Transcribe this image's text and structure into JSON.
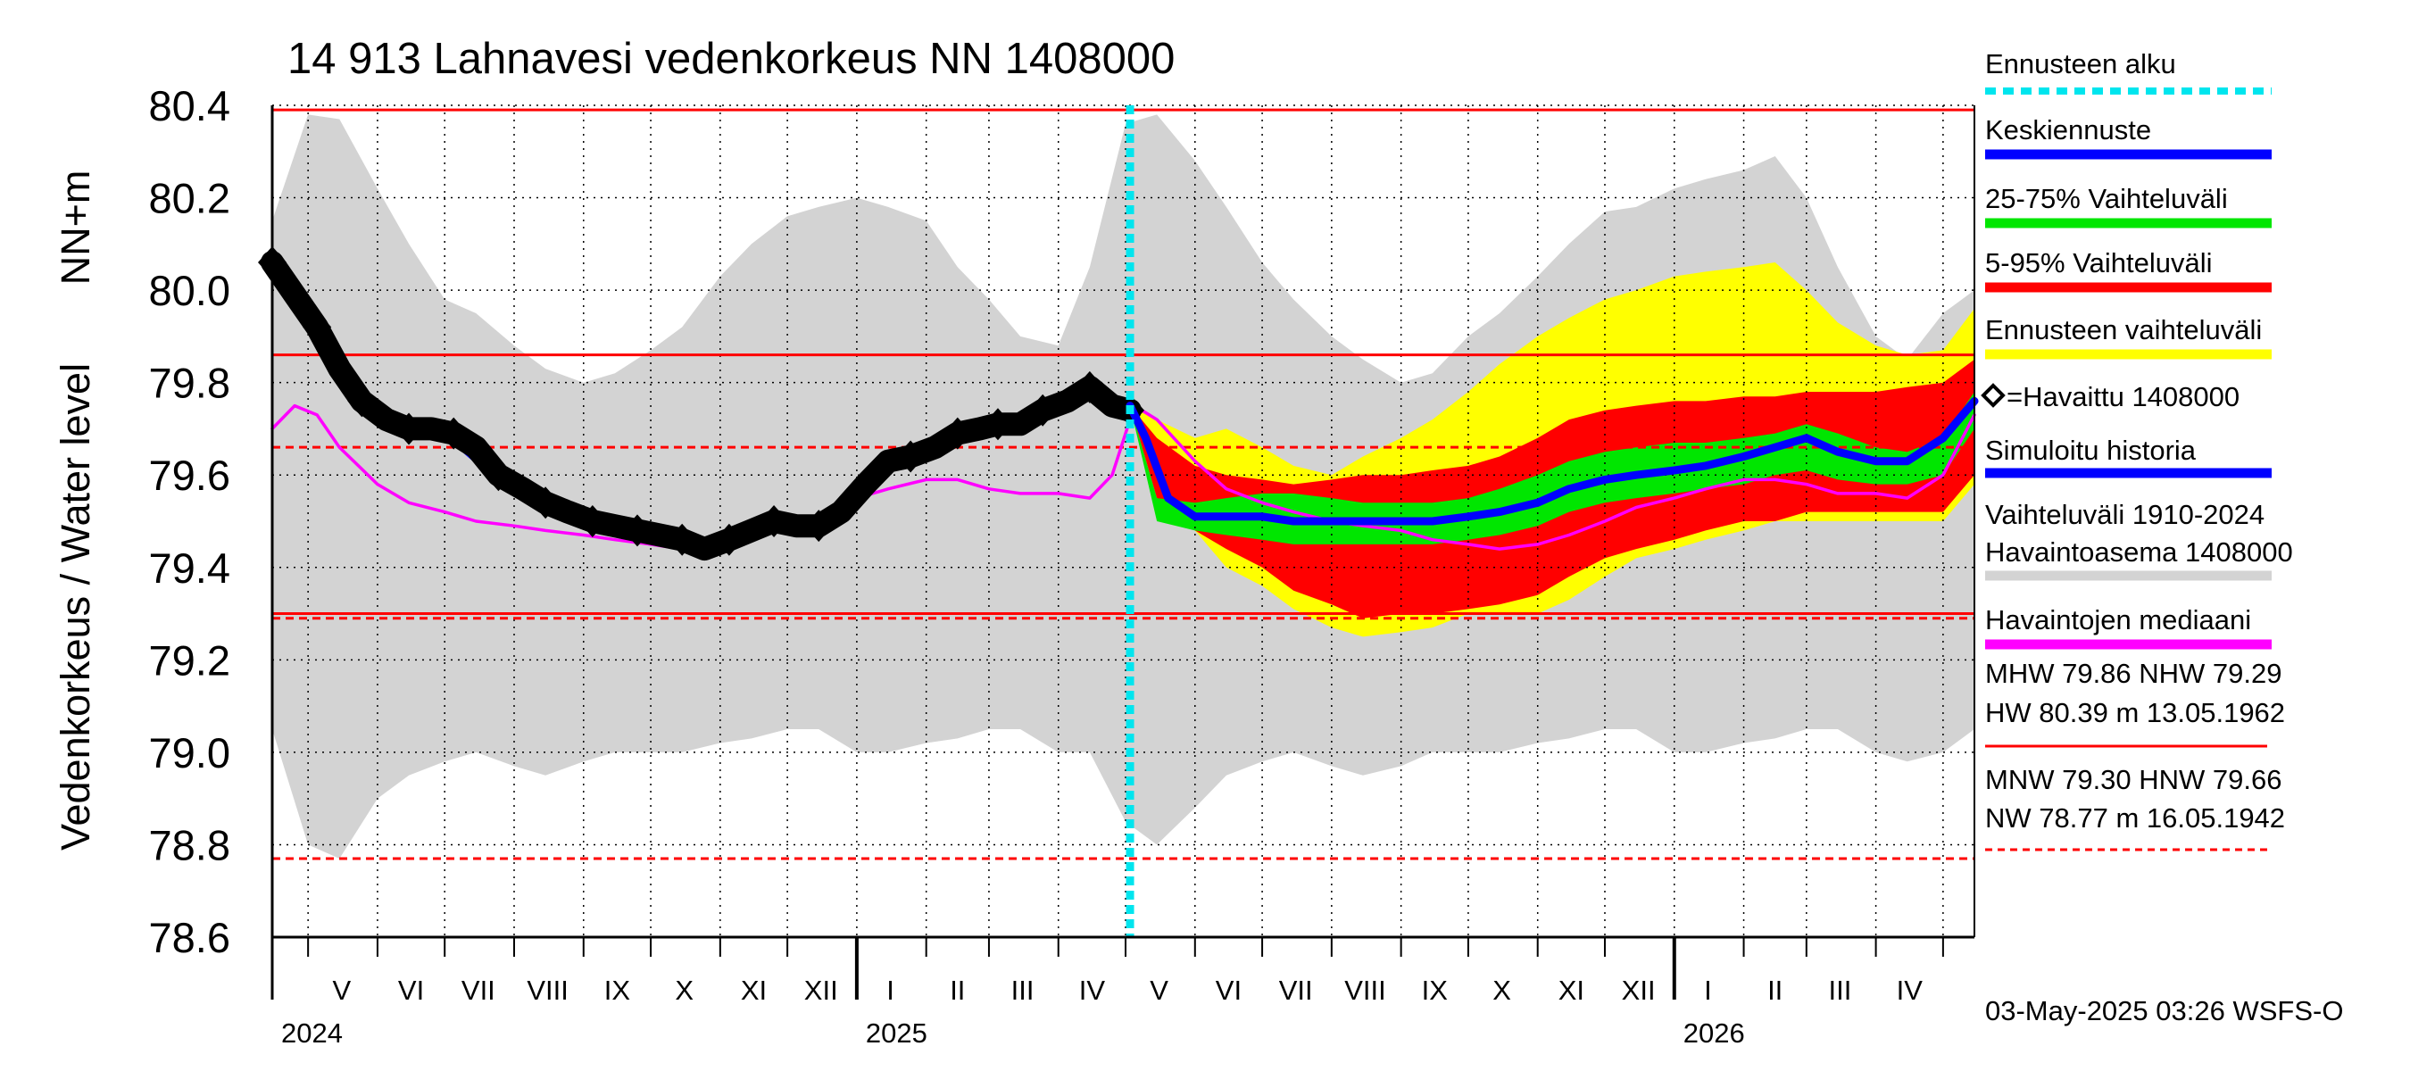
{
  "chart_data": {
    "type": "area",
    "title": "14 913 Lahnavesi vedenkorkeus NN 1408000",
    "ylabel_top": "NN+m",
    "ylabel": "Vedenkorkeus / Water level",
    "ylim": [
      78.6,
      80.4
    ],
    "yticks": [
      "80.4",
      "80.2",
      "80.0",
      "79.8",
      "79.6",
      "79.4",
      "79.2",
      "79.0",
      "78.8",
      "78.6"
    ],
    "x_start": "2024-04-15",
    "x_end": "2026-05-15",
    "forecast_start": "2025-05-03",
    "month_labels": [
      {
        "label": "V",
        "date": "2024-05-16"
      },
      {
        "label": "VI",
        "date": "2024-06-16"
      },
      {
        "label": "VII",
        "date": "2024-07-16"
      },
      {
        "label": "VIII",
        "date": "2024-08-16"
      },
      {
        "label": "IX",
        "date": "2024-09-16"
      },
      {
        "label": "X",
        "date": "2024-10-16"
      },
      {
        "label": "XI",
        "date": "2024-11-16"
      },
      {
        "label": "XII",
        "date": "2024-12-16"
      },
      {
        "label": "I",
        "date": "2025-01-16"
      },
      {
        "label": "II",
        "date": "2025-02-15"
      },
      {
        "label": "III",
        "date": "2025-03-16"
      },
      {
        "label": "IV",
        "date": "2025-04-16"
      },
      {
        "label": "V",
        "date": "2025-05-16"
      },
      {
        "label": "VI",
        "date": "2025-06-16"
      },
      {
        "label": "VII",
        "date": "2025-07-16"
      },
      {
        "label": "VIII",
        "date": "2025-08-16"
      },
      {
        "label": "IX",
        "date": "2025-09-16"
      },
      {
        "label": "X",
        "date": "2025-10-16"
      },
      {
        "label": "XI",
        "date": "2025-11-16"
      },
      {
        "label": "XII",
        "date": "2025-12-16"
      },
      {
        "label": "I",
        "date": "2026-01-16"
      },
      {
        "label": "II",
        "date": "2026-02-15"
      },
      {
        "label": "III",
        "date": "2026-03-16"
      },
      {
        "label": "IV",
        "date": "2026-04-16"
      }
    ],
    "month_ticks": [
      "2024-05-01",
      "2024-06-01",
      "2024-07-01",
      "2024-08-01",
      "2024-09-01",
      "2024-10-01",
      "2024-11-01",
      "2024-12-01",
      "2025-01-01",
      "2025-02-01",
      "2025-03-01",
      "2025-04-01",
      "2025-05-01",
      "2025-06-01",
      "2025-07-01",
      "2025-08-01",
      "2025-09-01",
      "2025-10-01",
      "2025-11-01",
      "2025-12-01",
      "2026-01-01",
      "2026-02-01",
      "2026-03-01",
      "2026-04-01",
      "2026-05-01"
    ],
    "year_ticks": [
      "2025-01-01",
      "2026-01-01"
    ],
    "year_labels": [
      {
        "label": "2024",
        "date": "2024-04-15"
      },
      {
        "label": "2025",
        "date": "2025-01-01"
      },
      {
        "label": "2026",
        "date": "2026-01-01"
      }
    ],
    "reference_lines": [
      {
        "name": "HW",
        "value": 80.39,
        "style": "solid"
      },
      {
        "name": "MHW",
        "value": 79.86,
        "style": "solid"
      },
      {
        "name": "HNW",
        "value": 79.66,
        "style": "dashed"
      },
      {
        "name": "MNW",
        "value": 79.3,
        "style": "solid"
      },
      {
        "name": "NHW",
        "value": 79.29,
        "style": "dashed"
      },
      {
        "name": "NW",
        "value": 78.77,
        "style": "dashed"
      }
    ],
    "series": [
      {
        "name": "Vaihteluväli 1910-2024 Havaintoasema 1408000",
        "kind": "band",
        "color": "#d3d3d3",
        "x": [
          "2024-04-15",
          "2024-05-01",
          "2024-05-15",
          "2024-06-01",
          "2024-06-15",
          "2024-07-01",
          "2024-07-15",
          "2024-08-01",
          "2024-08-15",
          "2024-09-01",
          "2024-09-15",
          "2024-10-01",
          "2024-10-15",
          "2024-11-01",
          "2024-11-15",
          "2024-12-01",
          "2024-12-15",
          "2025-01-01",
          "2025-01-15",
          "2025-02-01",
          "2025-02-15",
          "2025-03-01",
          "2025-03-15",
          "2025-04-01",
          "2025-04-15",
          "2025-05-01",
          "2025-05-15",
          "2025-06-01",
          "2025-06-15",
          "2025-07-01",
          "2025-07-15",
          "2025-08-01",
          "2025-08-15",
          "2025-09-01",
          "2025-09-15",
          "2025-10-01",
          "2025-10-15",
          "2025-11-01",
          "2025-11-15",
          "2025-12-01",
          "2025-12-15",
          "2026-01-01",
          "2026-01-15",
          "2026-02-01",
          "2026-02-15",
          "2026-03-01",
          "2026-03-15",
          "2026-04-01",
          "2026-04-15",
          "2026-05-01",
          "2026-05-15"
        ],
        "upper": [
          80.15,
          80.38,
          80.37,
          80.22,
          80.1,
          79.98,
          79.95,
          79.88,
          79.83,
          79.8,
          79.82,
          79.87,
          79.92,
          80.03,
          80.1,
          80.16,
          80.18,
          80.2,
          80.18,
          80.15,
          80.05,
          79.98,
          79.9,
          79.88,
          80.05,
          80.36,
          80.38,
          80.28,
          80.18,
          80.06,
          79.98,
          79.9,
          79.85,
          79.8,
          79.82,
          79.9,
          79.95,
          80.03,
          80.1,
          80.17,
          80.18,
          80.22,
          80.24,
          80.26,
          80.29,
          80.2,
          80.05,
          79.9,
          79.85,
          79.95,
          80.0
        ],
        "lower": [
          79.05,
          78.8,
          78.77,
          78.9,
          78.95,
          78.98,
          79.0,
          78.97,
          78.95,
          78.98,
          79.0,
          79.0,
          79.0,
          79.02,
          79.03,
          79.05,
          79.05,
          79.0,
          79.0,
          79.02,
          79.03,
          79.05,
          79.05,
          79.0,
          79.0,
          78.85,
          78.8,
          78.88,
          78.95,
          78.98,
          79.0,
          78.97,
          78.95,
          78.97,
          79.0,
          79.0,
          79.0,
          79.02,
          79.03,
          79.05,
          79.05,
          79.0,
          79.0,
          79.02,
          79.03,
          79.05,
          79.05,
          79.0,
          78.98,
          79.0,
          79.05
        ]
      },
      {
        "name": "Ennusteen vaihteluväli",
        "kind": "band",
        "color": "#ffff00",
        "x": [
          "2025-05-03",
          "2025-05-15",
          "2025-06-01",
          "2025-06-15",
          "2025-07-01",
          "2025-07-15",
          "2025-08-01",
          "2025-08-15",
          "2025-09-01",
          "2025-09-15",
          "2025-10-01",
          "2025-10-15",
          "2025-11-01",
          "2025-11-15",
          "2025-12-01",
          "2025-12-15",
          "2026-01-01",
          "2026-01-15",
          "2026-02-01",
          "2026-02-15",
          "2026-03-01",
          "2026-03-15",
          "2026-04-01",
          "2026-04-15",
          "2026-05-01",
          "2026-05-15"
        ],
        "upper": [
          79.75,
          79.72,
          79.68,
          79.7,
          79.66,
          79.62,
          79.6,
          79.64,
          79.68,
          79.72,
          79.78,
          79.84,
          79.9,
          79.94,
          79.98,
          80.0,
          80.03,
          80.04,
          80.05,
          80.06,
          80.0,
          79.93,
          79.88,
          79.86,
          79.87,
          79.96
        ],
        "lower": [
          79.75,
          79.62,
          79.48,
          79.4,
          79.36,
          79.31,
          79.27,
          79.25,
          79.26,
          79.27,
          79.3,
          79.3,
          79.3,
          79.33,
          79.38,
          79.42,
          79.44,
          79.46,
          79.48,
          79.5,
          79.5,
          79.5,
          79.5,
          79.5,
          79.5,
          79.58
        ]
      },
      {
        "name": "5-95% Vaihteluväli",
        "kind": "band",
        "color": "#ff0000",
        "x": [
          "2025-05-03",
          "2025-05-15",
          "2025-06-01",
          "2025-06-15",
          "2025-07-01",
          "2025-07-15",
          "2025-08-01",
          "2025-08-15",
          "2025-09-01",
          "2025-09-15",
          "2025-10-01",
          "2025-10-15",
          "2025-11-01",
          "2025-11-15",
          "2025-12-01",
          "2025-12-15",
          "2026-01-01",
          "2026-01-15",
          "2026-02-01",
          "2026-02-15",
          "2026-03-01",
          "2026-03-15",
          "2026-04-01",
          "2026-04-15",
          "2026-05-01",
          "2026-05-15"
        ],
        "upper": [
          79.75,
          79.68,
          79.62,
          79.6,
          79.59,
          79.58,
          79.59,
          79.6,
          79.6,
          79.61,
          79.62,
          79.64,
          79.68,
          79.72,
          79.74,
          79.75,
          79.76,
          79.76,
          79.77,
          79.77,
          79.78,
          79.78,
          79.78,
          79.79,
          79.8,
          79.85
        ],
        "lower": [
          79.75,
          79.55,
          79.48,
          79.44,
          79.4,
          79.35,
          79.32,
          79.29,
          79.3,
          79.3,
          79.31,
          79.32,
          79.34,
          79.38,
          79.42,
          79.44,
          79.46,
          79.48,
          79.5,
          79.5,
          79.52,
          79.52,
          79.52,
          79.52,
          79.52,
          79.6
        ]
      },
      {
        "name": "25-75% Vaihteluväli",
        "kind": "band",
        "color": "#00e600",
        "x": [
          "2025-05-03",
          "2025-05-15",
          "2025-06-01",
          "2025-06-15",
          "2025-07-01",
          "2025-07-15",
          "2025-08-01",
          "2025-08-15",
          "2025-09-01",
          "2025-09-15",
          "2025-10-01",
          "2025-10-15",
          "2025-11-01",
          "2025-11-15",
          "2025-12-01",
          "2025-12-15",
          "2026-01-01",
          "2026-01-15",
          "2026-02-01",
          "2026-02-15",
          "2026-03-01",
          "2026-03-15",
          "2026-04-01",
          "2026-04-15",
          "2026-05-01",
          "2026-05-15"
        ],
        "upper": [
          79.75,
          79.55,
          79.54,
          79.55,
          79.56,
          79.56,
          79.55,
          79.54,
          79.54,
          79.54,
          79.55,
          79.57,
          79.6,
          79.63,
          79.65,
          79.66,
          79.67,
          79.67,
          79.68,
          79.69,
          79.71,
          79.69,
          79.66,
          79.65,
          79.68,
          79.78
        ],
        "lower": [
          79.75,
          79.5,
          79.48,
          79.47,
          79.46,
          79.45,
          79.45,
          79.45,
          79.45,
          79.45,
          79.46,
          79.47,
          79.49,
          79.52,
          79.54,
          79.55,
          79.56,
          79.57,
          79.58,
          79.6,
          79.61,
          79.59,
          79.58,
          79.58,
          79.6,
          79.7
        ]
      },
      {
        "name": "Havaintojen mediaani",
        "kind": "line",
        "color": "#ff00ff",
        "x": [
          "2024-04-15",
          "2024-04-25",
          "2024-05-05",
          "2024-05-15",
          "2024-06-01",
          "2024-06-15",
          "2024-07-01",
          "2024-07-15",
          "2024-08-01",
          "2024-08-15",
          "2024-09-01",
          "2024-09-15",
          "2024-10-01",
          "2024-10-15",
          "2024-11-01",
          "2024-11-15",
          "2024-12-01",
          "2024-12-15",
          "2025-01-01",
          "2025-01-15",
          "2025-02-01",
          "2025-02-15",
          "2025-03-01",
          "2025-03-15",
          "2025-04-01",
          "2025-04-15",
          "2025-04-25",
          "2025-05-05",
          "2025-05-15",
          "2025-06-01",
          "2025-06-15",
          "2025-07-01",
          "2025-07-15",
          "2025-08-01",
          "2025-08-15",
          "2025-09-01",
          "2025-09-15",
          "2025-10-01",
          "2025-10-15",
          "2025-11-01",
          "2025-11-15",
          "2025-12-01",
          "2025-12-15",
          "2026-01-01",
          "2026-01-15",
          "2026-02-01",
          "2026-02-15",
          "2026-03-01",
          "2026-03-15",
          "2026-04-01",
          "2026-04-15",
          "2026-05-01",
          "2026-05-15"
        ],
        "values": [
          79.7,
          79.75,
          79.73,
          79.66,
          79.58,
          79.54,
          79.52,
          79.5,
          79.49,
          79.48,
          79.47,
          79.46,
          79.45,
          79.44,
          79.45,
          79.47,
          79.49,
          79.51,
          79.55,
          79.57,
          79.59,
          79.59,
          79.57,
          79.56,
          79.56,
          79.55,
          79.6,
          79.75,
          79.72,
          79.63,
          79.57,
          79.54,
          79.52,
          79.5,
          79.49,
          79.48,
          79.46,
          79.45,
          79.44,
          79.45,
          79.47,
          79.5,
          79.53,
          79.55,
          79.57,
          79.59,
          79.59,
          79.58,
          79.56,
          79.56,
          79.55,
          79.6,
          79.73
        ]
      },
      {
        "name": "=Havaittu 1408000",
        "kind": "observed",
        "color": "#000000",
        "x": [
          "2024-04-15",
          "2024-04-25",
          "2024-05-05",
          "2024-05-15",
          "2024-05-25",
          "2024-06-05",
          "2024-06-15",
          "2024-06-25",
          "2024-07-05",
          "2024-07-15",
          "2024-07-25",
          "2024-08-05",
          "2024-08-15",
          "2024-08-25",
          "2024-09-05",
          "2024-09-15",
          "2024-09-25",
          "2024-10-05",
          "2024-10-15",
          "2024-10-25",
          "2024-11-05",
          "2024-11-15",
          "2024-11-25",
          "2024-12-05",
          "2024-12-15",
          "2024-12-25",
          "2025-01-05",
          "2025-01-15",
          "2025-01-25",
          "2025-02-05",
          "2025-02-15",
          "2025-02-25",
          "2025-03-05",
          "2025-03-15",
          "2025-03-25",
          "2025-04-05",
          "2025-04-15",
          "2025-04-25",
          "2025-05-03"
        ],
        "values": [
          80.06,
          79.99,
          79.92,
          79.83,
          79.76,
          79.72,
          79.7,
          79.7,
          79.69,
          79.66,
          79.6,
          79.57,
          79.54,
          79.52,
          79.5,
          79.49,
          79.48,
          79.47,
          79.46,
          79.44,
          79.46,
          79.48,
          79.5,
          79.49,
          79.49,
          79.52,
          79.58,
          79.63,
          79.64,
          79.66,
          79.69,
          79.7,
          79.71,
          79.71,
          79.74,
          79.76,
          79.79,
          79.75,
          79.74
        ]
      },
      {
        "name": "Simuloitu historia",
        "kind": "line",
        "color": "#0000ff",
        "x": [
          "2024-04-15",
          "2024-04-25",
          "2024-05-05",
          "2024-05-15",
          "2024-06-01",
          "2024-07-01",
          "2024-08-01",
          "2024-09-01",
          "2024-10-01",
          "2024-10-15"
        ],
        "values": [
          80.04,
          79.97,
          79.9,
          79.82,
          79.73,
          79.69,
          79.56,
          79.5,
          79.48,
          79.46
        ]
      },
      {
        "name": "Keskiennuste",
        "kind": "line",
        "color": "#0000ff",
        "x": [
          "2025-05-03",
          "2025-05-10",
          "2025-05-20",
          "2025-06-01",
          "2025-06-15",
          "2025-07-01",
          "2025-07-15",
          "2025-08-01",
          "2025-08-15",
          "2025-09-01",
          "2025-09-15",
          "2025-10-01",
          "2025-10-15",
          "2025-11-01",
          "2025-11-15",
          "2025-12-01",
          "2025-12-15",
          "2026-01-01",
          "2026-01-15",
          "2026-02-01",
          "2026-02-15",
          "2026-03-01",
          "2026-03-15",
          "2026-04-01",
          "2026-04-15",
          "2026-05-01",
          "2026-05-15"
        ],
        "values": [
          79.75,
          79.68,
          79.55,
          79.51,
          79.51,
          79.51,
          79.5,
          79.5,
          79.5,
          79.5,
          79.5,
          79.51,
          79.52,
          79.54,
          79.57,
          79.59,
          79.6,
          79.61,
          79.62,
          79.64,
          79.66,
          79.68,
          79.65,
          79.63,
          79.63,
          79.68,
          79.76
        ]
      }
    ],
    "legend": {
      "placement": "right",
      "items": [
        {
          "label": "Ennusteen alku",
          "color": "#00e5ee",
          "style": "dashed"
        },
        {
          "label": "Keskiennuste",
          "color": "#0000ff",
          "style": "line"
        },
        {
          "label": "25-75% Vaihteluväli",
          "color": "#00e600",
          "style": "line"
        },
        {
          "label": "5-95% Vaihteluväli",
          "color": "#ff0000",
          "style": "line"
        },
        {
          "label": "Ennusteen vaihteluväli",
          "color": "#ffff00",
          "style": "line"
        },
        {
          "label": "=Havaittu 1408000",
          "color": "#000000",
          "style": "diamond"
        },
        {
          "label": "Simuloitu historia",
          "color": "#0000ff",
          "style": "line"
        },
        {
          "label": "Vaihteluväli 1910-2024",
          "label2": " Havaintoasema 1408000",
          "color": "#d3d3d3",
          "style": "line"
        },
        {
          "label": "Havaintojen mediaani",
          "color": "#ff00ff",
          "style": "line"
        }
      ]
    },
    "stats": {
      "line1": "MHW  79.86 NHW  79.29",
      "line2": "HW  80.39 m 13.05.1962",
      "line3": "MNW  79.30 HNW  79.66",
      "line4": "NW  78.77 m 16.05.1942"
    },
    "footer": "03-May-2025 03:26 WSFS-O"
  }
}
